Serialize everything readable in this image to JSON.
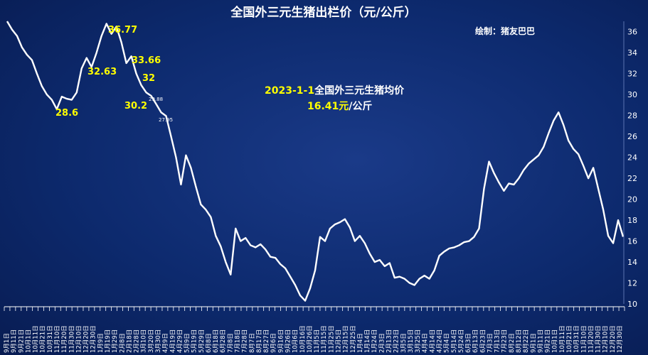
{
  "chart_data": {
    "type": "area",
    "title": "全国外三元生猪出栏价（元/公斤）",
    "credit": "绘制：猪友巴巴",
    "note": {
      "date": "2023-1-1",
      "text": "全国外三元生猪均价",
      "value": "16.41",
      "unit": "元",
      "unit_suffix": "/公斤"
    },
    "ylim": [
      10,
      37
    ],
    "yticks": [
      10,
      12,
      14,
      16,
      18,
      20,
      22,
      24,
      26,
      28,
      30,
      32,
      34,
      36
    ],
    "y_axis_position": "right",
    "grid": false,
    "x_tick_labels": [
      "9月1日",
      "9月11日",
      "9月21日",
      "10月1日",
      "10月11日",
      "10月21日",
      "10月31日",
      "11月10日",
      "11月20日",
      "11月30日",
      "12月10日",
      "12月20日",
      "12月30日",
      "1月9日",
      "1月19日",
      "1月29日",
      "2月8日",
      "2月18日",
      "2月28日",
      "3月10日",
      "3月20日",
      "3月30日",
      "4月9日",
      "4月19日",
      "4月29日",
      "5月9日",
      "5月19日",
      "5月29日",
      "6月8日",
      "6月18日",
      "6月28日",
      "7月8日",
      "7月18日",
      "7月28日",
      "8月7日",
      "8月17日",
      "8月27日",
      "9月6日",
      "9月16日",
      "9月26日",
      "10月6日",
      "10月16日",
      "10月26日",
      "11月5日",
      "11月15日",
      "11月25日",
      "12月5日",
      "12月15日",
      "12月25日",
      "1月4日",
      "1月14日",
      "1月24日",
      "2月3日",
      "2月13日",
      "2月23日",
      "3月5日",
      "3月15日",
      "3月25日",
      "4月4日",
      "4月14日",
      "4月24日",
      "5月4日",
      "5月14日",
      "5月24日",
      "6月3日",
      "6月13日",
      "6月23日",
      "7月3日",
      "7月13日",
      "7月23日",
      "8月2日",
      "8月12日",
      "8月22日",
      "9月1日",
      "9月11日",
      "9月21日",
      "10月1日",
      "10月11日",
      "10月21日",
      "10月31日",
      "11月10日",
      "11月20日",
      "11月30日",
      "12月10日",
      "12月20日",
      "12月30日"
    ],
    "series": [
      {
        "values": [
          37.0,
          36.2,
          35.6,
          34.5,
          33.8,
          33.3,
          32.0,
          30.8,
          30.0,
          29.5,
          28.6,
          29.8,
          29.6,
          29.5,
          30.2,
          32.5,
          33.5,
          32.63,
          34.0,
          35.6,
          36.77,
          35.8,
          36.5,
          35.0,
          33.0,
          33.66,
          32.0,
          30.9,
          30.2,
          29.88,
          29.1,
          28.3,
          27.95,
          26.0,
          24.0,
          21.4,
          24.2,
          23.0,
          21.2,
          19.5,
          19.0,
          18.3,
          16.5,
          15.5,
          14.0,
          12.8,
          17.2,
          16.0,
          16.3,
          15.6,
          15.4,
          15.7,
          15.2,
          14.5,
          14.4,
          13.8,
          13.4,
          12.6,
          11.8,
          10.8,
          10.3,
          11.5,
          13.2,
          16.4,
          16.0,
          17.2,
          17.6,
          17.8,
          18.1,
          17.3,
          16.0,
          16.5,
          15.8,
          14.8,
          14.0,
          14.2,
          13.6,
          13.9,
          12.5,
          12.6,
          12.4,
          12.0,
          11.8,
          12.4,
          12.7,
          12.4,
          13.2,
          14.6,
          15.0,
          15.3,
          15.4,
          15.6,
          15.9,
          16.0,
          16.4,
          17.2,
          21.0,
          23.6,
          22.5,
          21.6,
          20.8,
          21.5,
          21.4,
          22.0,
          22.8,
          23.4,
          23.8,
          24.2,
          25.0,
          26.3,
          27.5,
          28.3,
          27.1,
          25.6,
          24.8,
          24.3,
          23.2,
          22.0,
          23.0,
          21.0,
          19.0,
          16.5,
          15.8,
          18.0,
          16.41
        ]
      }
    ],
    "annotations": [
      {
        "label": "36.77",
        "size": "big"
      },
      {
        "label": "32.63",
        "size": "big"
      },
      {
        "label": "33.66",
        "size": "big"
      },
      {
        "label": "32",
        "size": "big"
      },
      {
        "label": "28.6",
        "size": "big"
      },
      {
        "label": "30.2",
        "size": "big"
      },
      {
        "label": "29.88",
        "size": "small"
      },
      {
        "label": "27.95",
        "size": "small"
      }
    ]
  }
}
